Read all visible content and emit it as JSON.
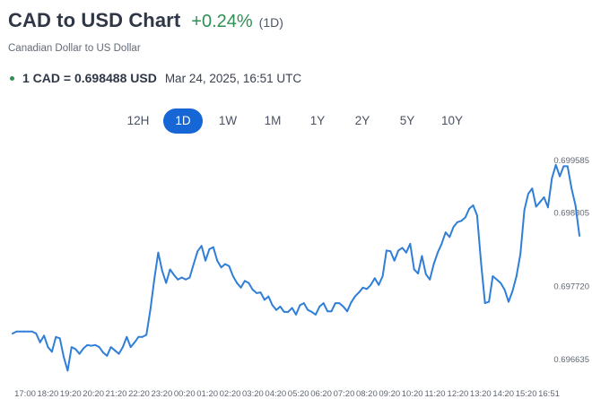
{
  "header": {
    "title": "CAD to USD Chart",
    "change": "+0.24%",
    "period_badge": "(1D)",
    "subtitle": "Canadian Dollar to US Dollar"
  },
  "rate": {
    "value": "1 CAD = 0.698488 USD",
    "time": "Mar 24, 2025, 16:51 UTC"
  },
  "tabs": [
    {
      "label": "12H",
      "active": false
    },
    {
      "label": "1D",
      "active": true
    },
    {
      "label": "1W",
      "active": false
    },
    {
      "label": "1M",
      "active": false
    },
    {
      "label": "1Y",
      "active": false
    },
    {
      "label": "2Y",
      "active": false
    },
    {
      "label": "5Y",
      "active": false
    },
    {
      "label": "10Y",
      "active": false
    }
  ],
  "colors": {
    "line": "#2f7ed8",
    "accent": "#1766d6",
    "positive": "#2f8f55"
  },
  "chart_data": {
    "type": "line",
    "x_ticks": [
      "17:00",
      "18:20",
      "19:20",
      "20:20",
      "21:20",
      "22:20",
      "23:20",
      "00:20",
      "01:20",
      "02:20",
      "03:20",
      "04:20",
      "05:20",
      "06:20",
      "07:20",
      "08:20",
      "09:20",
      "10:20",
      "11:20",
      "12:20",
      "13:20",
      "14:20",
      "15:20",
      "16:51"
    ],
    "x_tick_labels": [
      "17:00",
      "18:20",
      "19:20",
      "20:20",
      "21:20",
      "22:20",
      "23:20",
      "00:20",
      "01:20",
      "02:20",
      "03:20",
      "04:20",
      "05:20",
      "06:20",
      "07:20",
      "08:20",
      "09:20",
      "10:20",
      "11:20",
      "12:20",
      "13:20",
      "14:20",
      "15:20",
      "16:51"
    ],
    "y_tick_labels": [
      "0.699585",
      "0.698805",
      "0.697720",
      "0.696635"
    ],
    "y_ticks": [
      0.699585,
      0.698805,
      0.69772,
      0.696635
    ],
    "ylim": [
      0.696635,
      0.699585
    ],
    "grid": false,
    "series": [
      {
        "values": [
          0.6971,
          0.69713,
          0.69713,
          0.69713,
          0.69713,
          0.69713,
          0.6971,
          0.69697,
          0.69707,
          0.6969,
          0.69683,
          0.69705,
          0.69703,
          0.69675,
          0.69655,
          0.6969,
          0.69687,
          0.6968,
          0.69688,
          0.69693,
          0.69692,
          0.69693,
          0.6969,
          0.69682,
          0.69677,
          0.6969,
          0.69685,
          0.6968,
          0.6969,
          0.69705,
          0.6969,
          0.69697,
          0.69705,
          0.69705,
          0.69708,
          0.69745,
          0.6979,
          0.6983,
          0.69803,
          0.69785,
          0.69805,
          0.69797,
          0.6979,
          0.69793,
          0.6979,
          0.69793,
          0.69813,
          0.69832,
          0.6984,
          0.69818,
          0.69835,
          0.69838,
          0.69818,
          0.69808,
          0.69813,
          0.6981,
          0.69795,
          0.69785,
          0.69778,
          0.69788,
          0.69785,
          0.69775,
          0.6977,
          0.69771,
          0.6976,
          0.69765,
          0.69752,
          0.69745,
          0.6975,
          0.69742,
          0.69742,
          0.69748,
          0.69738,
          0.69752,
          0.69755,
          0.69745,
          0.69742,
          0.69738,
          0.6975,
          0.69755,
          0.69743,
          0.69743,
          0.69755,
          0.69755,
          0.6975,
          0.69743,
          0.69756,
          0.69765,
          0.69771,
          0.69778,
          0.69776,
          0.69782,
          0.69792,
          0.69782,
          0.69795,
          0.69833,
          0.69832,
          0.69818,
          0.69833,
          0.69837,
          0.6983,
          0.69843,
          0.69805,
          0.69799,
          0.69825,
          0.69798,
          0.6979,
          0.69813,
          0.6983,
          0.69843,
          0.6986,
          0.69853,
          0.69868,
          0.69875,
          0.69877,
          0.69882,
          0.69895,
          0.699,
          0.69885,
          0.69815,
          0.69755,
          0.69757,
          0.69795,
          0.6979,
          0.69785,
          0.69775,
          0.69757,
          0.69773,
          0.69795,
          0.69828,
          0.69893,
          0.69917,
          0.69925,
          0.69898,
          0.69905,
          0.69912,
          0.69897,
          0.6994,
          0.6996,
          0.69943,
          0.69958,
          0.69958,
          0.69925,
          0.699,
          0.69855
        ]
      }
    ]
  }
}
